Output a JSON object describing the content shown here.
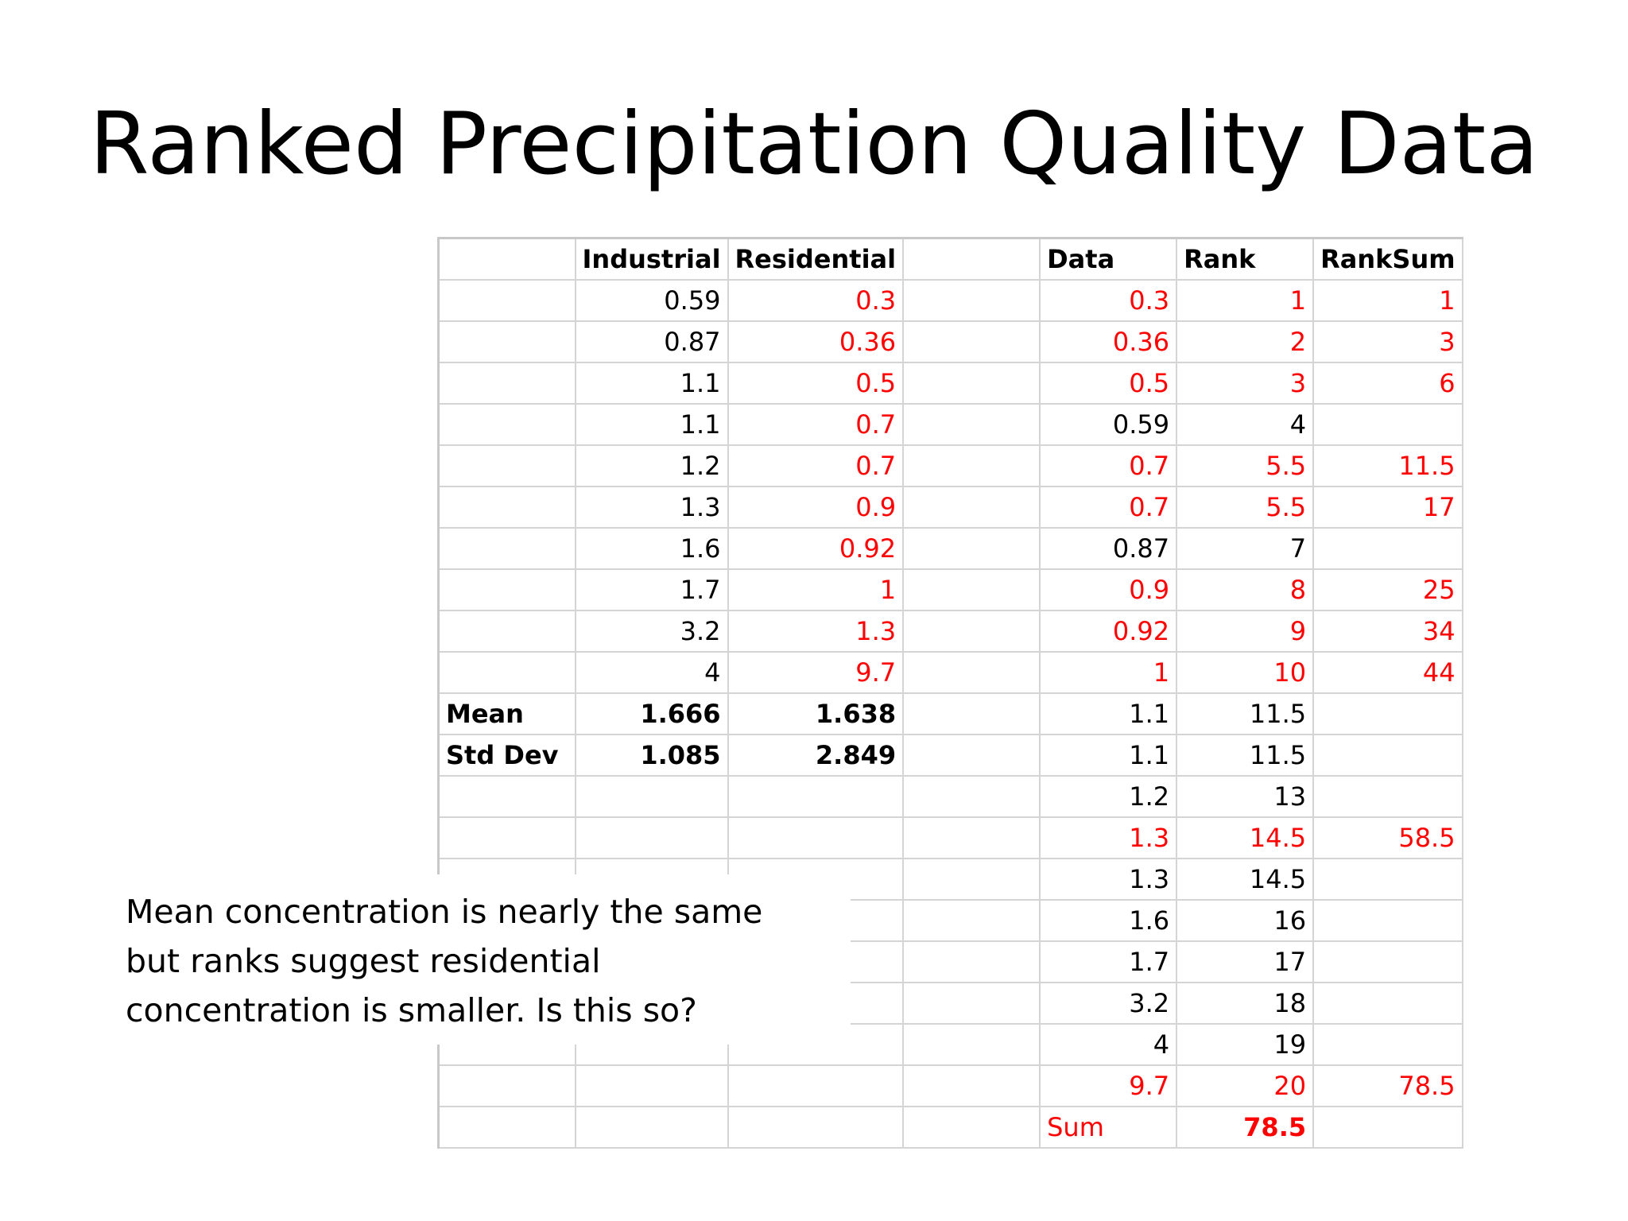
{
  "slide": {
    "title": "Ranked Precipitation Quality Data",
    "note_lines": [
      "Mean concentration is nearly the same",
      "but ranks suggest residential",
      "concentration is smaller.  Is this so?"
    ]
  },
  "colors": {
    "highlight_red": "#ff0000",
    "grid": "#d4d4d4"
  },
  "table": {
    "headers": [
      "",
      "Industrial",
      "Residential",
      "",
      "Data",
      "Rank",
      "RankSum"
    ],
    "rows": [
      {
        "cells": [
          "",
          "0.59",
          "0.3",
          "",
          "0.3",
          "1",
          "1"
        ],
        "red": [
          2,
          4,
          5,
          6
        ]
      },
      {
        "cells": [
          "",
          "0.87",
          "0.36",
          "",
          "0.36",
          "2",
          "3"
        ],
        "red": [
          2,
          4,
          5,
          6
        ]
      },
      {
        "cells": [
          "",
          "1.1",
          "0.5",
          "",
          "0.5",
          "3",
          "6"
        ],
        "red": [
          2,
          4,
          5,
          6
        ]
      },
      {
        "cells": [
          "",
          "1.1",
          "0.7",
          "",
          "0.59",
          "4",
          ""
        ],
        "red": [
          2
        ]
      },
      {
        "cells": [
          "",
          "1.2",
          "0.7",
          "",
          "0.7",
          "5.5",
          "11.5"
        ],
        "red": [
          2,
          4,
          5,
          6
        ]
      },
      {
        "cells": [
          "",
          "1.3",
          "0.9",
          "",
          "0.7",
          "5.5",
          "17"
        ],
        "red": [
          2,
          4,
          5,
          6
        ]
      },
      {
        "cells": [
          "",
          "1.6",
          "0.92",
          "",
          "0.87",
          "7",
          ""
        ],
        "red": [
          2
        ]
      },
      {
        "cells": [
          "",
          "1.7",
          "1",
          "",
          "0.9",
          "8",
          "25"
        ],
        "red": [
          2,
          4,
          5,
          6
        ]
      },
      {
        "cells": [
          "",
          "3.2",
          "1.3",
          "",
          "0.92",
          "9",
          "34"
        ],
        "red": [
          2,
          4,
          5,
          6
        ]
      },
      {
        "cells": [
          "",
          "4",
          "9.7",
          "",
          "1",
          "10",
          "44"
        ],
        "red": [
          2,
          4,
          5,
          6
        ]
      },
      {
        "cells": [
          "Mean",
          "1.666",
          "1.638",
          "",
          "1.1",
          "11.5",
          ""
        ],
        "red": [],
        "bold": [
          1,
          2
        ],
        "label": true
      },
      {
        "cells": [
          "Std Dev",
          "1.085",
          "2.849",
          "",
          "1.1",
          "11.5",
          ""
        ],
        "red": [],
        "bold": [
          1,
          2
        ],
        "label": true
      },
      {
        "cells": [
          "",
          "",
          "",
          "",
          "1.2",
          "13",
          ""
        ],
        "red": []
      },
      {
        "cells": [
          "",
          "",
          "",
          "",
          "1.3",
          "14.5",
          "58.5"
        ],
        "red": [
          4,
          5,
          6
        ]
      },
      {
        "cells": [
          "",
          "",
          "",
          "",
          "1.3",
          "14.5",
          ""
        ],
        "red": []
      },
      {
        "cells": [
          "",
          "",
          "",
          "",
          "1.6",
          "16",
          ""
        ],
        "red": []
      },
      {
        "cells": [
          "",
          "",
          "",
          "",
          "1.7",
          "17",
          ""
        ],
        "red": []
      },
      {
        "cells": [
          "",
          "",
          "",
          "",
          "3.2",
          "18",
          ""
        ],
        "red": []
      },
      {
        "cells": [
          "",
          "",
          "",
          "",
          "4",
          "19",
          ""
        ],
        "red": []
      },
      {
        "cells": [
          "",
          "",
          "",
          "",
          "9.7",
          "20",
          "78.5"
        ],
        "red": [
          4,
          5,
          6
        ]
      },
      {
        "cells": [
          "",
          "",
          "",
          "",
          "Sum",
          "78.5",
          ""
        ],
        "red": [
          4,
          5
        ],
        "bold": [
          5
        ],
        "sum": true
      }
    ]
  }
}
